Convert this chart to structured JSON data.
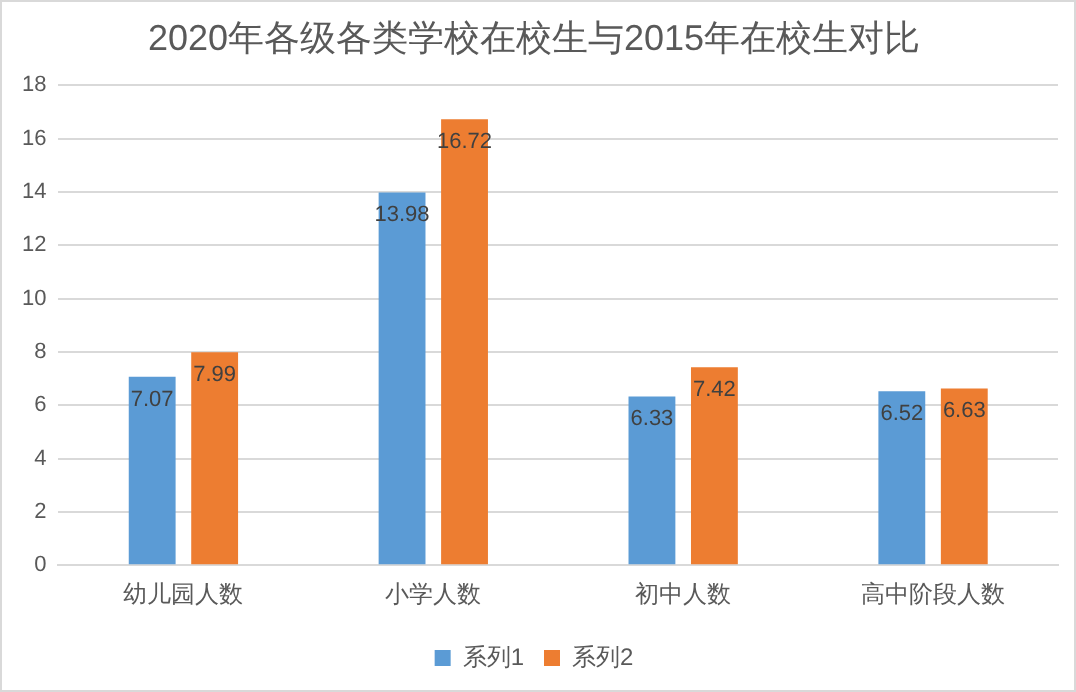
{
  "chart_data": {
    "type": "bar",
    "title": "2020年各级各类学校在校生与2015年在校生对比",
    "categories": [
      "幼儿园人数",
      "小学人数",
      "初中人数",
      "高中阶段人数"
    ],
    "series": [
      {
        "name": "系列1",
        "color": "#5b9bd5",
        "values": [
          7.07,
          13.98,
          6.33,
          6.52
        ]
      },
      {
        "name": "系列2",
        "color": "#ed7d31",
        "values": [
          7.99,
          16.72,
          7.42,
          6.63
        ]
      }
    ],
    "ylim": [
      0,
      18
    ],
    "yticks": [
      0,
      2,
      4,
      6,
      8,
      10,
      12,
      14,
      16,
      18
    ],
    "grid": "y",
    "legend": "bottom",
    "data_labels": true
  }
}
